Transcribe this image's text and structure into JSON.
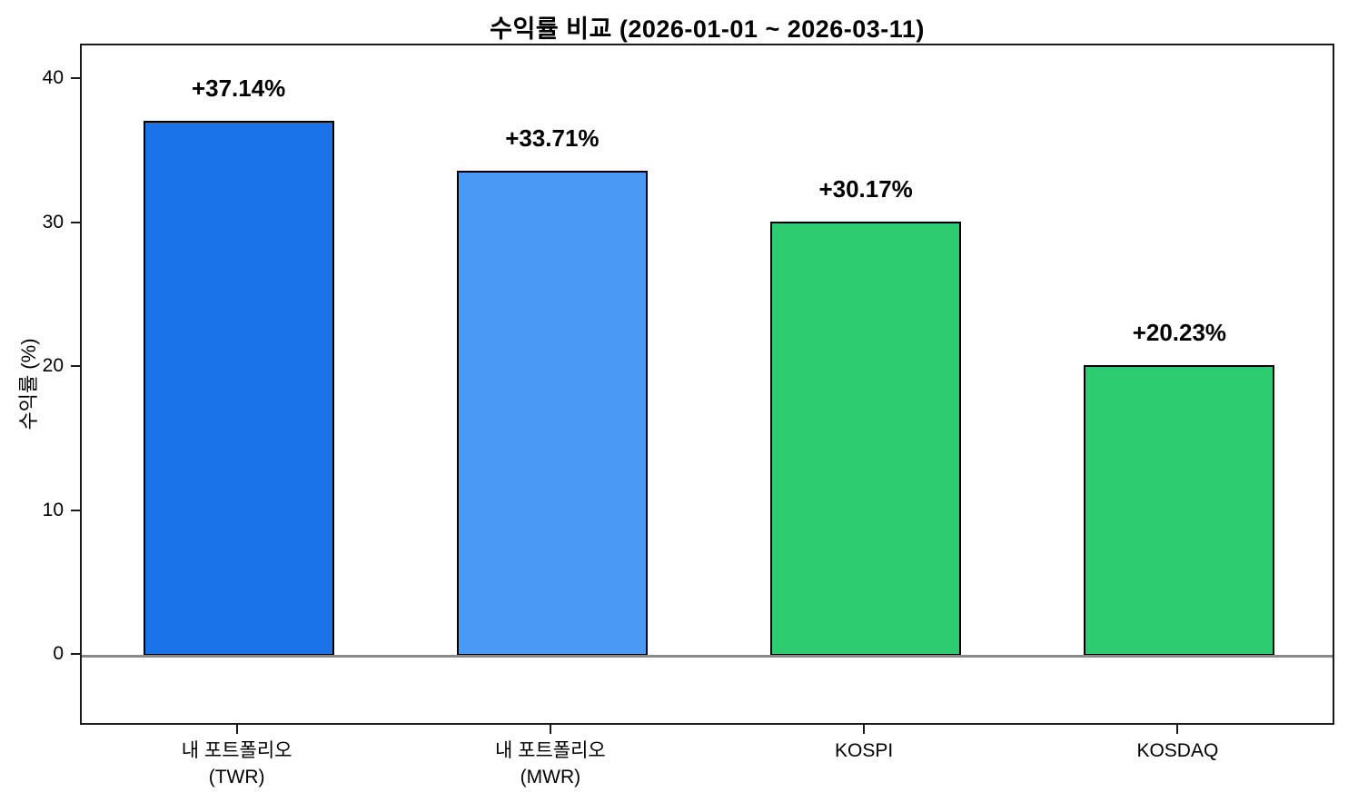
{
  "figure": {
    "background": "#ffffff"
  },
  "chart_data": {
    "type": "bar",
    "title": "수익률 비교 (2026-01-01 ~ 2026-03-11)",
    "ylabel": "수익률 (%)",
    "xlabel": "",
    "categories": [
      "내 포트폴리오\n(TWR)",
      "내 포트폴리오\n(MWR)",
      "KOSPI",
      "KOSDAQ"
    ],
    "values": [
      37.14,
      33.71,
      30.17,
      20.23
    ],
    "bar_labels": [
      "+37.14%",
      "+33.71%",
      "+30.17%",
      "+20.23%"
    ],
    "bar_colors": [
      "#1a73e8",
      "#4a9af5",
      "#2ecc71",
      "#2ecc71"
    ],
    "bar_edge_color": "#000000",
    "yticks": [
      0,
      10,
      20,
      30,
      40
    ],
    "ylim": [
      -4.9,
      42.4
    ],
    "zero_line_value": 0,
    "zero_line_color": "#8a8a8a",
    "grid": false,
    "legend_position": "none"
  }
}
